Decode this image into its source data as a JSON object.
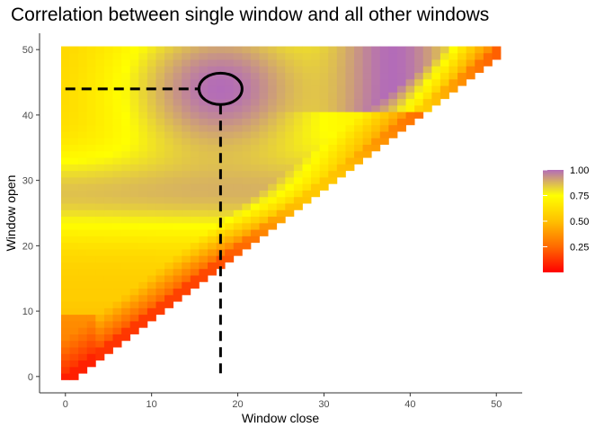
{
  "chart_data": {
    "type": "heatmap",
    "title": "Correlation between single window and all other windows",
    "xlabel": "Window close",
    "ylabel": "Window open",
    "xlim": [
      -3,
      53
    ],
    "ylim": [
      -2.5,
      52.5
    ],
    "x_ticks": [
      0,
      10,
      20,
      30,
      40,
      50
    ],
    "y_ticks": [
      0,
      10,
      20,
      30,
      40,
      50
    ],
    "grid": false,
    "cell_rule": "cells exist for integer x (Window close) and y (Window open) where x <= y + 1, x and y from 0 to 50",
    "value_range": [
      0,
      1
    ],
    "color_scale": {
      "stops": [
        {
          "value": 0.0,
          "color": "#ff0000"
        },
        {
          "value": 0.25,
          "color": "#ff6a00"
        },
        {
          "value": 0.5,
          "color": "#ffc000"
        },
        {
          "value": 0.75,
          "color": "#ffff00"
        },
        {
          "value": 1.0,
          "color": "#b36cb8"
        }
      ]
    },
    "legend": {
      "position": "right",
      "breaks": [
        0.25,
        0.5,
        0.75,
        1.0
      ],
      "labels": [
        "0.25",
        "0.50",
        "0.75",
        "1.00"
      ]
    },
    "reference_window": {
      "close": 18,
      "open": 44
    },
    "annotations": [
      {
        "type": "ellipse",
        "center_x": 18,
        "center_y": 44,
        "radius_x": 2.5,
        "radius_y": 2.4
      },
      {
        "type": "dashed-line",
        "from": [
          0,
          44
        ],
        "to": [
          15.5,
          44
        ]
      },
      {
        "type": "dashed-line",
        "from": [
          18,
          41.6
        ],
        "to": [
          18,
          0
        ]
      }
    ]
  }
}
